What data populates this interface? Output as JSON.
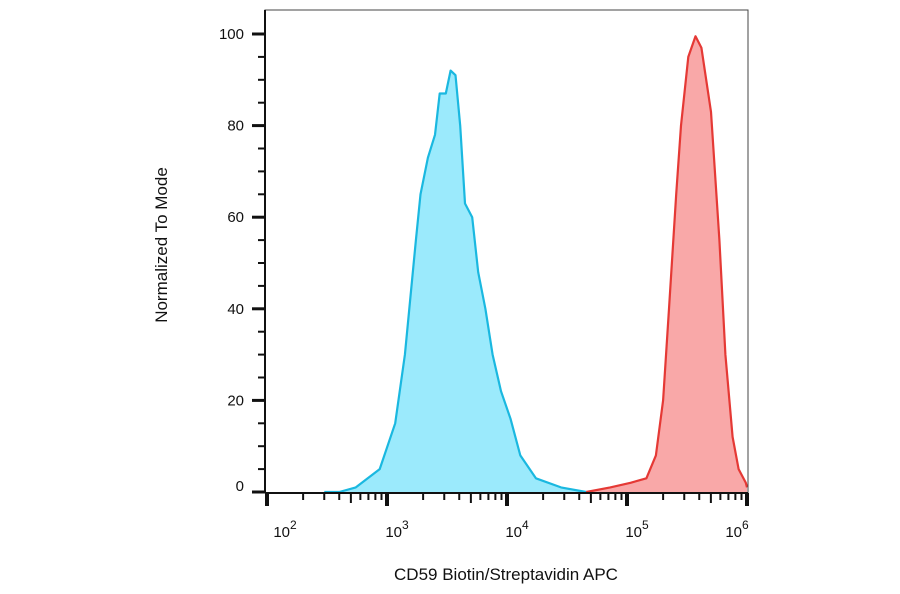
{
  "chart_data": {
    "type": "area",
    "title": "",
    "xlabel": "CD59 Biotin/Streptavidin APC",
    "ylabel": "Normalized To Mode",
    "x_scale": "log",
    "xlim": [
      100,
      1000000
    ],
    "ylim": [
      0,
      105
    ],
    "x_ticks": [
      {
        "value": 100,
        "base": "10",
        "exp": "2"
      },
      {
        "value": 1000,
        "base": "10",
        "exp": "3"
      },
      {
        "value": 10000,
        "base": "10",
        "exp": "4"
      },
      {
        "value": 100000,
        "base": "10",
        "exp": "5"
      },
      {
        "value": 1000000,
        "base": "10",
        "exp": "6"
      }
    ],
    "y_ticks": [
      {
        "value": 0,
        "label": "0"
      },
      {
        "value": 20,
        "label": "20"
      },
      {
        "value": 40,
        "label": "40"
      },
      {
        "value": 60,
        "label": "60"
      },
      {
        "value": 80,
        "label": "80"
      },
      {
        "value": 100,
        "label": "100"
      }
    ],
    "grid": false,
    "legend": "none",
    "series": [
      {
        "color": "#1ab8e0",
        "fill": "#9beafc",
        "x": [
          300,
          400,
          550,
          870,
          1170,
          1410,
          1740,
          1900,
          2190,
          2510,
          2750,
          3090,
          3390,
          3720,
          4070,
          4470,
          5130,
          5750,
          6610,
          7590,
          8910,
          10700,
          12900,
          17400,
          28200,
          45700
        ],
        "y": [
          0,
          0,
          1,
          5,
          15,
          30,
          55,
          65,
          73,
          78,
          87,
          87,
          92,
          91,
          80,
          63,
          60,
          48,
          40,
          30,
          22,
          16,
          8,
          3,
          1,
          0
        ]
      },
      {
        "color": "#e53935",
        "fill": "#f9a8a8",
        "x": [
          45700,
          72400,
          107000,
          145000,
          174000,
          200000,
          224000,
          257000,
          282000,
          324000,
          372000,
          417000,
          501000,
          589000,
          661000,
          759000,
          851000,
          977000,
          1000000
        ],
        "y": [
          0,
          1,
          2,
          3,
          8,
          20,
          40,
          65,
          80,
          95,
          99.5,
          97,
          83,
          55,
          30,
          12,
          5,
          2,
          1
        ]
      }
    ]
  }
}
